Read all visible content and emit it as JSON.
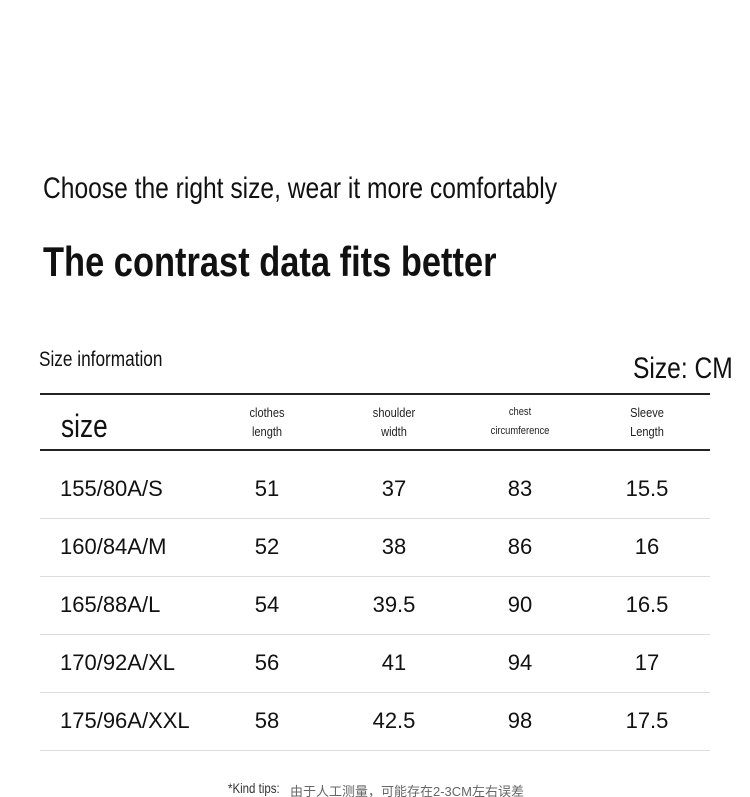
{
  "header": {
    "tagline": "Choose the right size, wear it more comfortably",
    "title": "The contrast data fits better"
  },
  "table": {
    "caption": "Size information",
    "unit": "Size: CM",
    "columns": [
      "size",
      [
        "clothes",
        "length"
      ],
      [
        "shoulder",
        "width"
      ],
      [
        "chest",
        "circumference"
      ],
      [
        "Sleeve",
        "Length"
      ]
    ],
    "rows": [
      [
        "155/80A/S",
        51,
        37,
        83,
        15.5
      ],
      [
        "160/84A/M",
        52,
        38,
        86,
        16
      ],
      [
        "165/88A/L",
        54,
        39.5,
        90,
        16.5
      ],
      [
        "170/92A/XL",
        56,
        41,
        94,
        17
      ],
      [
        "175/96A/XXL",
        58,
        42.5,
        98,
        17.5
      ]
    ]
  },
  "footer": {
    "label": "*Kind tips:",
    "text": "由于人工测量，可能存在2-3CM左右误差"
  }
}
